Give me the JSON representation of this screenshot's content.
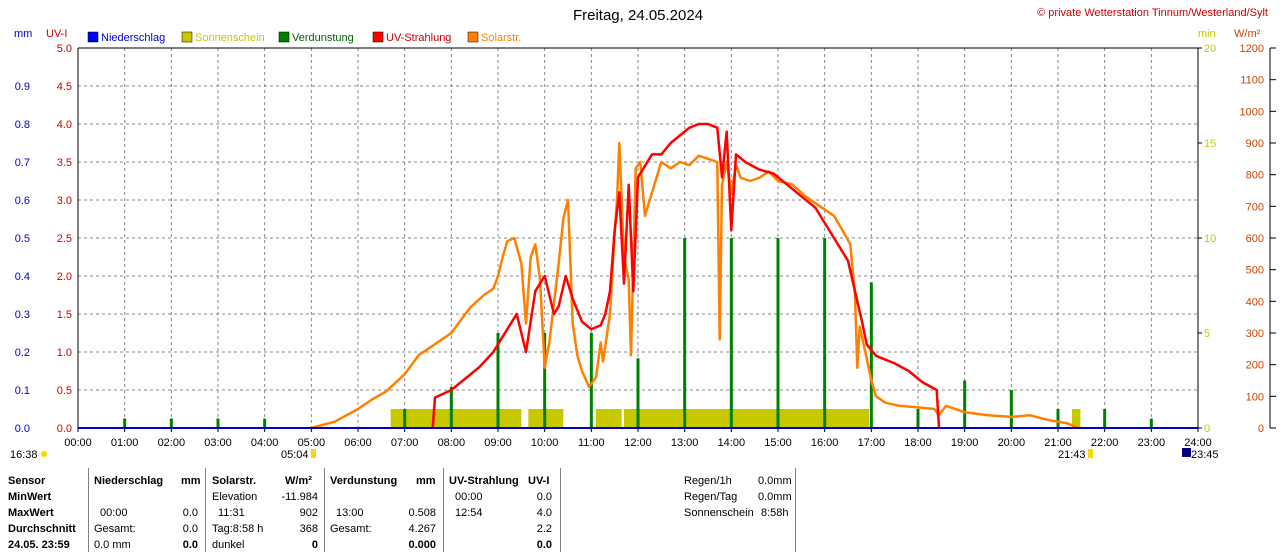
{
  "header": {
    "title": "Freitag, 24.05.2024",
    "copyright": "© private Wetterstation Tinnum/Westerland/Sylt"
  },
  "axis_units": {
    "left_mm": "mm",
    "left_uvi": "UV-I",
    "right_min": "min",
    "right_wm2": "W/m²"
  },
  "legend": [
    {
      "label": "Niederschlag",
      "color": "#0000ff"
    },
    {
      "label": "Sonnenschein",
      "color": "#c8c800"
    },
    {
      "label": "Verdunstung",
      "color": "#008000"
    },
    {
      "label": "UV-Strahlung",
      "color": "#ff0000"
    },
    {
      "label": "Solarstr.",
      "color": "#ff8000"
    }
  ],
  "sun": {
    "rise_left": "16:38",
    "rise": "05:04",
    "set": "21:43",
    "set_right": "23:45"
  },
  "chart_data": {
    "type": "line",
    "title": "Freitag, 24.05.2024",
    "x_ticks": [
      "00:00",
      "01:00",
      "02:00",
      "03:00",
      "04:00",
      "05:00",
      "06:00",
      "07:00",
      "08:00",
      "09:00",
      "10:00",
      "11:00",
      "12:00",
      "13:00",
      "14:00",
      "15:00",
      "16:00",
      "17:00",
      "18:00",
      "19:00",
      "20:00",
      "21:00",
      "22:00",
      "23:00",
      "24:00"
    ],
    "axes": {
      "mm": {
        "ticks": [
          "0.0",
          "0.1",
          "0.2",
          "0.3",
          "0.4",
          "0.5",
          "0.6",
          "0.7",
          "0.8",
          "0.9"
        ],
        "range": [
          0,
          1.0
        ],
        "color": "#0000cc"
      },
      "uvi": {
        "ticks": [
          "0.0",
          "0.5",
          "1.0",
          "1.5",
          "2.0",
          "2.5",
          "3.0",
          "3.5",
          "4.0",
          "4.5",
          "5.0"
        ],
        "range": [
          0,
          5.0
        ],
        "color": "#cc0000"
      },
      "min": {
        "ticks": [
          "0",
          "5",
          "10",
          "15",
          "20"
        ],
        "range": [
          0,
          20
        ],
        "color": "#c8c800"
      },
      "wm2": {
        "ticks": [
          "0",
          "100",
          "200",
          "300",
          "400",
          "500",
          "600",
          "700",
          "800",
          "900",
          "1000",
          "1100",
          "1200"
        ],
        "range": [
          0,
          1200
        ],
        "color": "#cc4400"
      }
    },
    "grid": true,
    "series": [
      {
        "name": "Solarstr.",
        "axis": "wm2",
        "color": "#ff8000",
        "points": [
          [
            5.0,
            0
          ],
          [
            5.5,
            20
          ],
          [
            6.0,
            60
          ],
          [
            6.3,
            90
          ],
          [
            6.6,
            115
          ],
          [
            7.0,
            170
          ],
          [
            7.3,
            230
          ],
          [
            7.6,
            260
          ],
          [
            8.0,
            300
          ],
          [
            8.4,
            380
          ],
          [
            8.7,
            420
          ],
          [
            8.9,
            440
          ],
          [
            9.0,
            480
          ],
          [
            9.1,
            540
          ],
          [
            9.2,
            590
          ],
          [
            9.35,
            600
          ],
          [
            9.5,
            520
          ],
          [
            9.6,
            330
          ],
          [
            9.7,
            540
          ],
          [
            9.8,
            580
          ],
          [
            9.9,
            470
          ],
          [
            10.0,
            190
          ],
          [
            10.1,
            270
          ],
          [
            10.3,
            520
          ],
          [
            10.4,
            660
          ],
          [
            10.5,
            720
          ],
          [
            10.6,
            330
          ],
          [
            10.7,
            230
          ],
          [
            10.8,
            180
          ],
          [
            10.95,
            130
          ],
          [
            11.1,
            160
          ],
          [
            11.2,
            270
          ],
          [
            11.25,
            210
          ],
          [
            11.4,
            360
          ],
          [
            11.5,
            620
          ],
          [
            11.55,
            720
          ],
          [
            11.6,
            900
          ],
          [
            11.7,
            540
          ],
          [
            11.8,
            470
          ],
          [
            11.85,
            230
          ],
          [
            11.95,
            820
          ],
          [
            12.05,
            840
          ],
          [
            12.15,
            670
          ],
          [
            12.25,
            720
          ],
          [
            12.5,
            840
          ],
          [
            12.7,
            820
          ],
          [
            12.9,
            840
          ],
          [
            13.1,
            830
          ],
          [
            13.3,
            860
          ],
          [
            13.5,
            850
          ],
          [
            13.7,
            840
          ],
          [
            13.75,
            280
          ],
          [
            13.8,
            770
          ],
          [
            13.9,
            840
          ],
          [
            14.0,
            740
          ],
          [
            14.1,
            830
          ],
          [
            14.2,
            790
          ],
          [
            14.4,
            780
          ],
          [
            14.6,
            790
          ],
          [
            14.8,
            810
          ],
          [
            15.0,
            780
          ],
          [
            15.3,
            770
          ],
          [
            15.6,
            730
          ],
          [
            15.9,
            700
          ],
          [
            16.2,
            670
          ],
          [
            16.4,
            620
          ],
          [
            16.55,
            580
          ],
          [
            16.65,
            420
          ],
          [
            16.7,
            190
          ],
          [
            16.75,
            320
          ],
          [
            16.9,
            220
          ],
          [
            17.0,
            150
          ],
          [
            17.1,
            100
          ],
          [
            17.3,
            80
          ],
          [
            17.6,
            70
          ],
          [
            18.0,
            65
          ],
          [
            18.35,
            60
          ],
          [
            18.45,
            40
          ],
          [
            18.6,
            70
          ],
          [
            19.0,
            50
          ],
          [
            19.5,
            40
          ],
          [
            20.0,
            35
          ],
          [
            20.4,
            40
          ],
          [
            20.8,
            25
          ],
          [
            21.2,
            15
          ],
          [
            21.43,
            0
          ]
        ]
      },
      {
        "name": "UV-Strahlung",
        "axis": "uvi",
        "color": "#ff0000",
        "points": [
          [
            7.6,
            0.0
          ],
          [
            7.65,
            0.4
          ],
          [
            8.0,
            0.5
          ],
          [
            8.3,
            0.65
          ],
          [
            8.6,
            0.8
          ],
          [
            8.9,
            1.0
          ],
          [
            9.2,
            1.3
          ],
          [
            9.4,
            1.5
          ],
          [
            9.6,
            1.0
          ],
          [
            9.8,
            1.8
          ],
          [
            10.0,
            2.0
          ],
          [
            10.2,
            1.5
          ],
          [
            10.3,
            1.6
          ],
          [
            10.45,
            2.0
          ],
          [
            10.6,
            1.7
          ],
          [
            10.8,
            1.4
          ],
          [
            11.0,
            1.3
          ],
          [
            11.2,
            1.35
          ],
          [
            11.3,
            1.5
          ],
          [
            11.4,
            1.8
          ],
          [
            11.5,
            2.6
          ],
          [
            11.6,
            3.1
          ],
          [
            11.7,
            1.9
          ],
          [
            11.8,
            3.2
          ],
          [
            11.9,
            1.8
          ],
          [
            12.0,
            3.3
          ],
          [
            12.1,
            3.4
          ],
          [
            12.3,
            3.6
          ],
          [
            12.5,
            3.6
          ],
          [
            12.7,
            3.75
          ],
          [
            12.9,
            3.85
          ],
          [
            13.1,
            3.95
          ],
          [
            13.3,
            4.0
          ],
          [
            13.5,
            4.0
          ],
          [
            13.7,
            3.95
          ],
          [
            13.8,
            3.3
          ],
          [
            13.9,
            3.9
          ],
          [
            14.0,
            2.6
          ],
          [
            14.1,
            3.6
          ],
          [
            14.3,
            3.5
          ],
          [
            14.6,
            3.4
          ],
          [
            14.9,
            3.35
          ],
          [
            15.2,
            3.2
          ],
          [
            15.5,
            3.05
          ],
          [
            15.8,
            2.9
          ],
          [
            16.1,
            2.6
          ],
          [
            16.3,
            2.4
          ],
          [
            16.5,
            2.2
          ],
          [
            16.65,
            1.8
          ],
          [
            16.8,
            1.4
          ],
          [
            16.9,
            1.1
          ],
          [
            17.1,
            0.95
          ],
          [
            17.5,
            0.85
          ],
          [
            17.8,
            0.75
          ],
          [
            18.1,
            0.6
          ],
          [
            18.4,
            0.5
          ],
          [
            18.45,
            0.0
          ]
        ]
      }
    ],
    "bars": [
      {
        "name": "Verdunstung",
        "axis": "wm2",
        "color": "#008000",
        "points": [
          [
            1,
            30
          ],
          [
            2,
            30
          ],
          [
            3,
            30
          ],
          [
            4,
            30
          ],
          [
            7,
            60
          ],
          [
            8,
            130
          ],
          [
            9,
            300
          ],
          [
            10,
            300
          ],
          [
            11,
            300
          ],
          [
            12,
            220
          ],
          [
            13,
            600
          ],
          [
            14,
            600
          ],
          [
            15,
            600
          ],
          [
            16,
            600
          ],
          [
            17,
            460
          ],
          [
            18,
            60
          ],
          [
            19,
            150
          ],
          [
            20,
            120
          ],
          [
            21,
            60
          ],
          [
            22,
            60
          ],
          [
            23,
            30
          ]
        ]
      }
    ],
    "sunshine_blocks": [
      [
        6.7,
        9.5
      ],
      [
        9.65,
        10.4
      ],
      [
        11.1,
        11.65
      ],
      [
        11.7,
        16.95
      ],
      [
        21.3,
        21.48
      ]
    ],
    "sunshine_level": 1.0
  },
  "table": {
    "sensor": {
      "header": "Sensor",
      "rows": [
        "MinWert",
        "MaxWert",
        "Durchschnitt",
        "24.05. 23:59"
      ]
    },
    "niederschlag": {
      "header": "Niederschlag",
      "unit": "mm",
      "max_time": "00:00",
      "max_val": "0.0",
      "gesamt_label": "Gesamt:",
      "gesamt_val": "0.0",
      "now_label": "0.0 mm",
      "now_val": "0.0"
    },
    "solar": {
      "header": "Solarstr.",
      "unit": "W/m²",
      "elev_label": "Elevation",
      "elev_val": "-11.984",
      "max_time": "11:31",
      "max_val": "902",
      "tag_label": "Tag:8:58 h",
      "tag_val": "368",
      "dark_label": "dunkel",
      "dark_val": "0"
    },
    "verdunstung": {
      "header": "Verdunstung",
      "unit": "mm",
      "max_time": "13:00",
      "max_val": "0.508",
      "gesamt_label": "Gesamt:",
      "gesamt_val": "4.267",
      "now_val": "0.000"
    },
    "uv": {
      "header": "UV-Strahlung",
      "unit": "UV-I",
      "min_time": "00:00",
      "min_val": "0.0",
      "max_time": "12:54",
      "max_val": "4.0",
      "avg_val": "2.2",
      "now_val": "0.0"
    },
    "extra": [
      {
        "label": "Regen/1h",
        "value": "0.0mm"
      },
      {
        "label": "Regen/Tag",
        "value": "0.0mm"
      },
      {
        "label": "Sonnenschein",
        "value": "8:58h"
      }
    ]
  }
}
